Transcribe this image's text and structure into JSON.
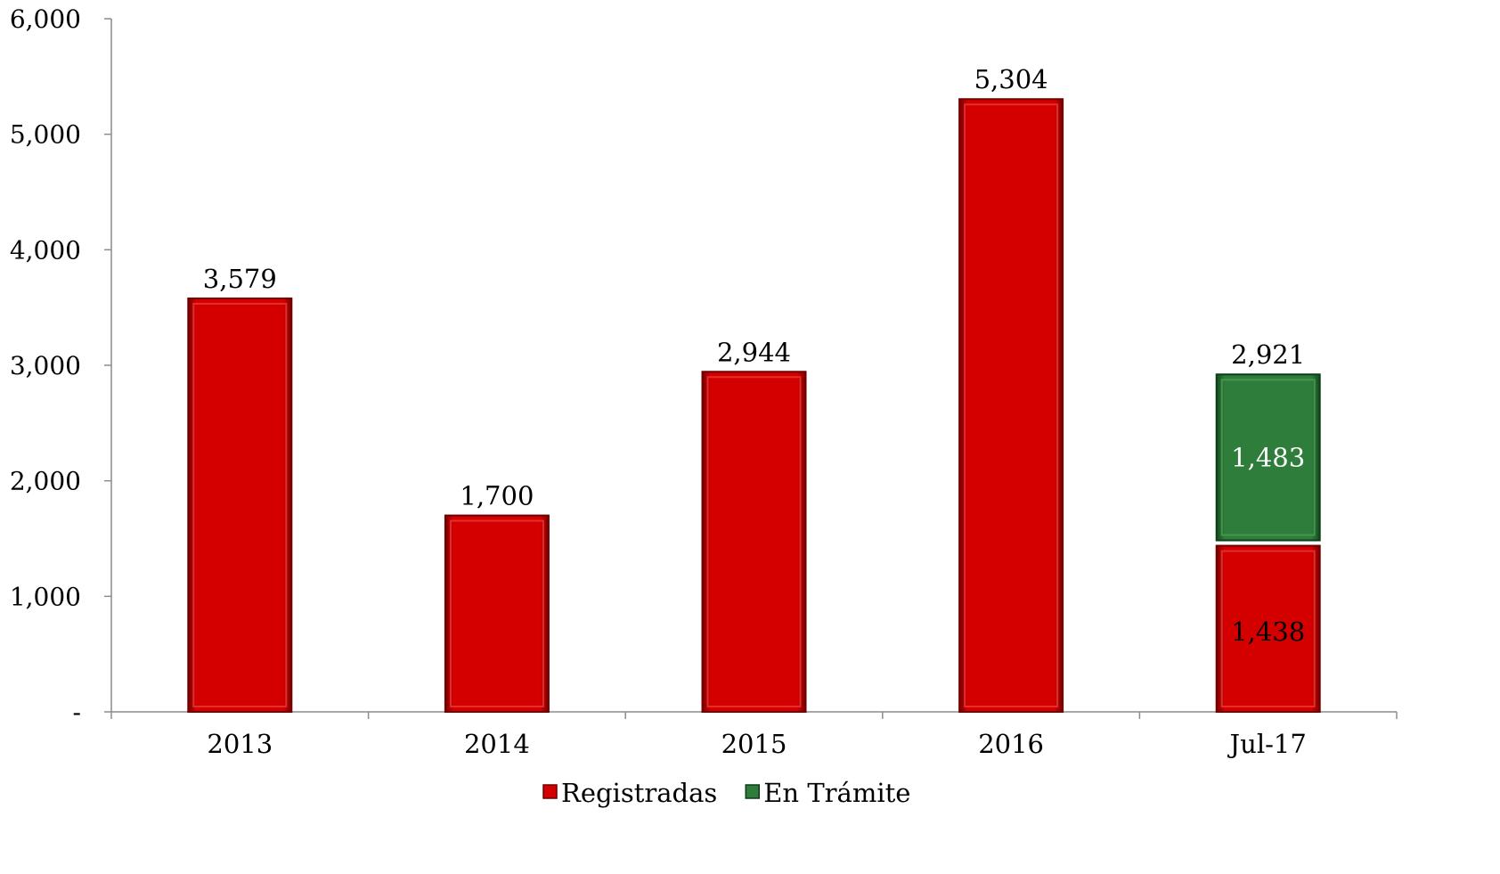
{
  "chart_data": {
    "type": "bar",
    "stacked": true,
    "categories": [
      "2013",
      "2014",
      "2015",
      "2016",
      "Jul-17"
    ],
    "series": [
      {
        "name": "Registradas",
        "values": [
          3579,
          1700,
          2944,
          5304,
          1438
        ],
        "color": "#cc0000"
      },
      {
        "name": "En Trámite",
        "values": [
          0,
          0,
          0,
          0,
          1483
        ],
        "color": "#2e7d3a"
      }
    ],
    "totals": [
      "3,579",
      "1,700",
      "2,944",
      "5,304",
      "2,921"
    ],
    "segment_labels": {
      "Registradas": [
        "",
        "",
        "",
        "",
        "1,438"
      ],
      "En Trámite": [
        "",
        "",
        "",
        "",
        "1,483"
      ]
    },
    "y_ticks": [
      {
        "value": 0,
        "label": "-"
      },
      {
        "value": 1000,
        "label": "1,000"
      },
      {
        "value": 2000,
        "label": "2,000"
      },
      {
        "value": 3000,
        "label": "3,000"
      },
      {
        "value": 4000,
        "label": "4,000"
      },
      {
        "value": 5000,
        "label": "5,000"
      },
      {
        "value": 6000,
        "label": "6,000"
      }
    ],
    "ylim": [
      0,
      6000
    ],
    "grid": false,
    "legend_position": "bottom-center"
  }
}
